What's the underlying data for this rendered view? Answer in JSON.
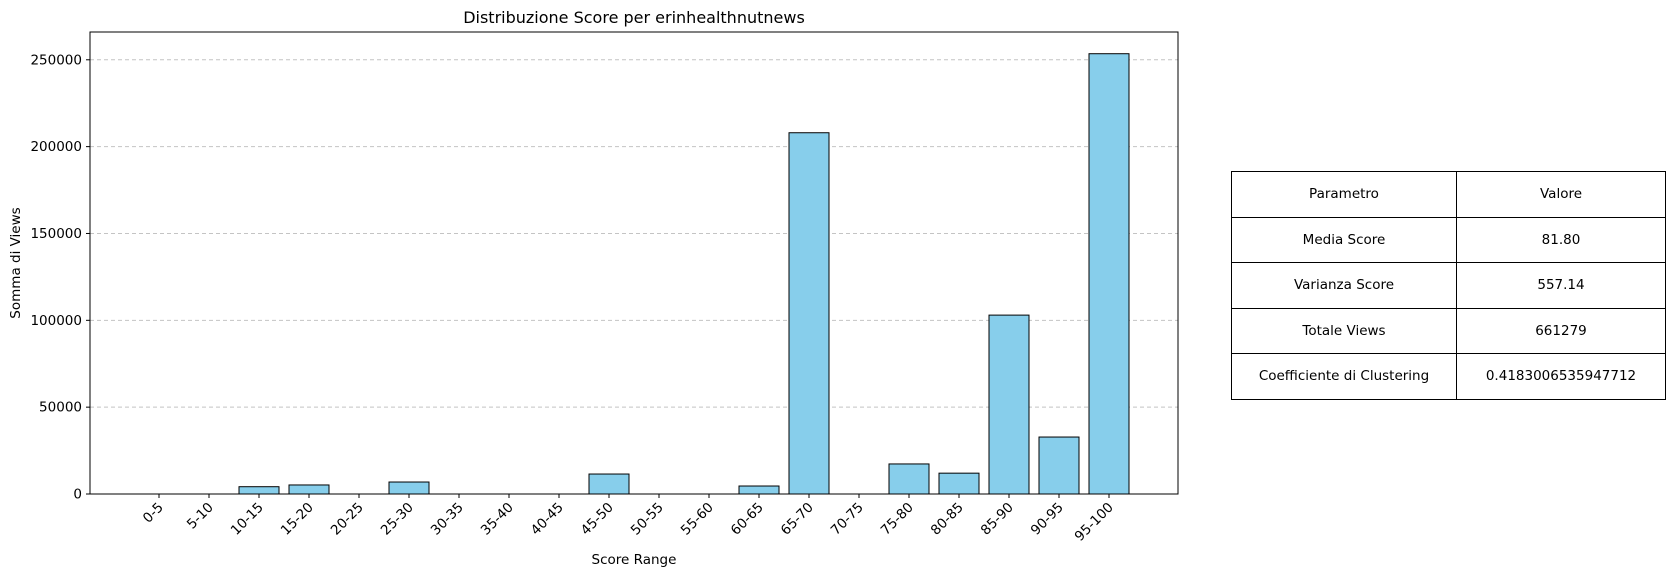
{
  "chart_data": {
    "type": "bar",
    "title": "Distribuzione Score per erinhealthnutnews",
    "xlabel": "Score Range",
    "ylabel": "Somma di Views",
    "categories": [
      "0-5",
      "5-10",
      "10-15",
      "15-20",
      "20-25",
      "25-30",
      "30-35",
      "35-40",
      "40-45",
      "45-50",
      "50-55",
      "55-60",
      "60-65",
      "65-70",
      "70-75",
      "75-80",
      "80-85",
      "85-90",
      "90-95",
      "95-100"
    ],
    "values": [
      0,
      0,
      4200,
      5200,
      0,
      6900,
      0,
      0,
      0,
      11500,
      0,
      0,
      4600,
      208000,
      0,
      17300,
      12000,
      103000,
      32800,
      253500
    ],
    "ylim": [
      0,
      266000
    ],
    "yticks": [
      0,
      50000,
      100000,
      150000,
      200000,
      250000
    ],
    "grid": "y-dashed",
    "bar_color": "#87ceeb",
    "edge_color": "#000000"
  },
  "table": {
    "header": [
      "Parametro",
      "Valore"
    ],
    "rows": [
      [
        "Media Score",
        "81.80"
      ],
      [
        "Varianza Score",
        "557.14"
      ],
      [
        "Totale Views",
        "661279"
      ],
      [
        "Coefficiente di Clustering",
        "0.4183006535947712"
      ]
    ]
  }
}
